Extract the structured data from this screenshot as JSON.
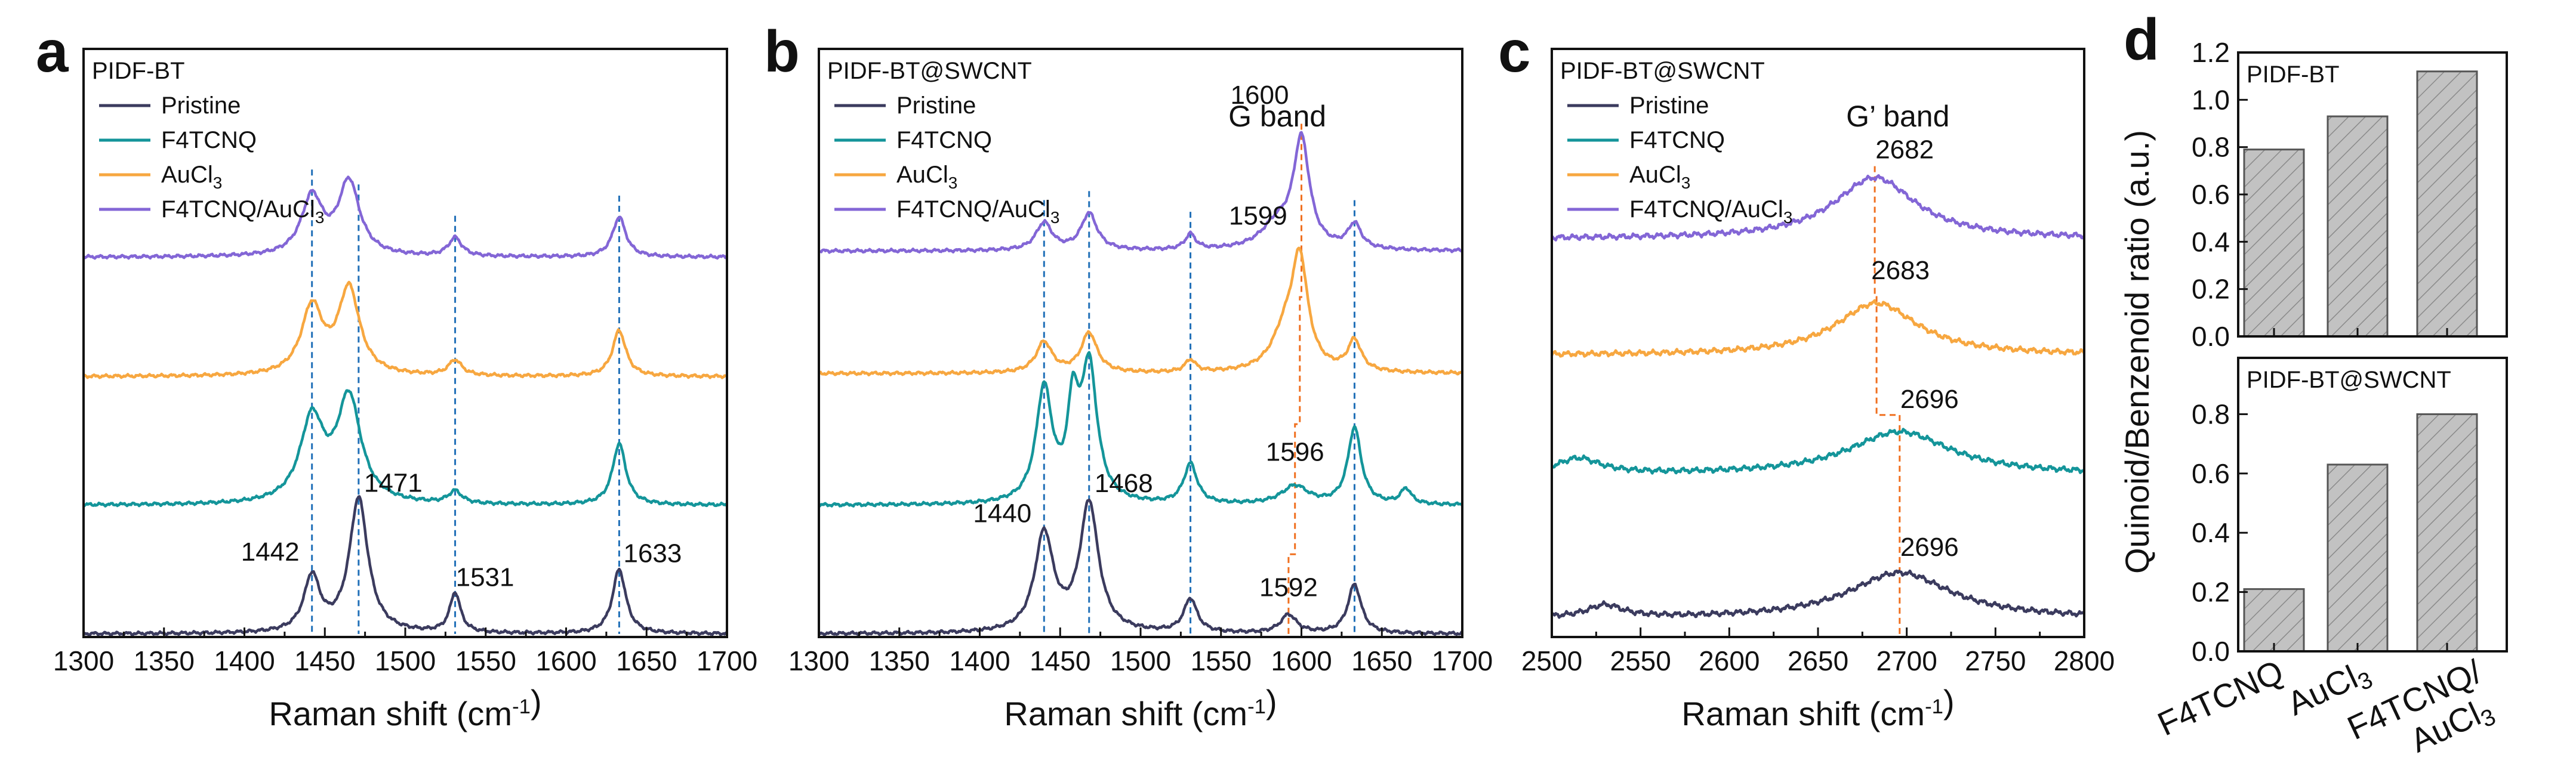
{
  "colors": {
    "pristine": "#3b3b5e",
    "f4tcnq": "#14959a",
    "aucl3": "#f7a740",
    "f4tcnq_aucl3": "#8366d6",
    "blue_dash": "#2170b8",
    "orange_dash": "#f07020",
    "bar_fill": "#c2c2c2"
  },
  "chart_data": [
    {
      "panel": "a",
      "type": "line",
      "title": "PIDF-BT",
      "xlabel": "Raman shift (cm-1)",
      "xlim": [
        1300,
        1700
      ],
      "xticks": [
        1300,
        1350,
        1400,
        1450,
        1500,
        1550,
        1600,
        1650,
        1700
      ],
      "legend": [
        "Pristine",
        "F4TCNQ",
        "AuCl3",
        "F4TCNQ/AuCl3"
      ],
      "legend_location": "top-left",
      "series": [
        {
          "name": "Pristine",
          "offset": 0,
          "baseline": 0.05,
          "peaks": [
            [
              1442,
              0.9,
              6
            ],
            [
              1471,
              2.2,
              7
            ],
            [
              1531,
              0.65,
              4
            ],
            [
              1633,
              1.05,
              5
            ]
          ]
        },
        {
          "name": "F4TCNQ",
          "offset": 2.1,
          "baseline": 0.05,
          "peaks": [
            [
              1442,
              1.35,
              9
            ],
            [
              1465,
              1.7,
              9
            ],
            [
              1531,
              0.2,
              5
            ],
            [
              1633,
              1.0,
              5
            ]
          ]
        },
        {
          "name": "AuCl3",
          "offset": 4.2,
          "baseline": 0.05,
          "peaks": [
            [
              1442,
              1.1,
              8
            ],
            [
              1465,
              1.4,
              8
            ],
            [
              1531,
              0.25,
              5
            ],
            [
              1633,
              0.75,
              5
            ]
          ]
        },
        {
          "name": "F4TCNQ/AuCl3",
          "offset": 6.15,
          "baseline": 0.05,
          "peaks": [
            [
              1442,
              0.95,
              8
            ],
            [
              1465,
              1.2,
              8
            ],
            [
              1531,
              0.3,
              5
            ],
            [
              1633,
              0.65,
              5
            ]
          ]
        }
      ],
      "peak_labels": [
        {
          "text": "1442",
          "x": 1442,
          "series": 0
        },
        {
          "text": "1471",
          "x": 1471,
          "series": 0
        },
        {
          "text": "1531",
          "x": 1531,
          "series": 0
        },
        {
          "text": "1633",
          "x": 1633,
          "series": 0
        }
      ],
      "guide_lines_x": [
        1442,
        1471,
        1531,
        1633
      ]
    },
    {
      "panel": "b",
      "type": "line",
      "title": "PIDF-BT@SWCNT",
      "xlabel": "Raman shift (cm-1)",
      "xlim": [
        1300,
        1700
      ],
      "xticks": [
        1300,
        1350,
        1400,
        1450,
        1500,
        1550,
        1600,
        1650,
        1700
      ],
      "legend": [
        "Pristine",
        "F4TCNQ",
        "AuCl3",
        "F4TCNQ/AuCl3"
      ],
      "legend_location": "top-left",
      "annotation": "G band",
      "series": [
        {
          "name": "Pristine",
          "offset": 0,
          "baseline": 0.05,
          "peaks": [
            [
              1440,
              1.6,
              7
            ],
            [
              1468,
              2.1,
              7
            ],
            [
              1531,
              0.55,
              5
            ],
            [
              1592,
              0.3,
              6
            ],
            [
              1633,
              0.8,
              5
            ]
          ]
        },
        {
          "name": "F4TCNQ",
          "offset": 2.1,
          "baseline": 0.05,
          "peaks": [
            [
              1440,
              1.85,
              6
            ],
            [
              1458,
              1.4,
              4
            ],
            [
              1468,
              2.2,
              6
            ],
            [
              1531,
              0.65,
              5
            ],
            [
              1596,
              0.3,
              10
            ],
            [
              1633,
              1.25,
              5
            ],
            [
              1665,
              0.25,
              4
            ]
          ]
        },
        {
          "name": "AuCl3",
          "offset": 4.25,
          "baseline": 0.05,
          "peaks": [
            [
              1440,
              0.5,
              6
            ],
            [
              1468,
              0.65,
              6
            ],
            [
              1531,
              0.2,
              4
            ],
            [
              1590,
              0.6,
              10
            ],
            [
              1599,
              1.7,
              6
            ],
            [
              1633,
              0.5,
              5
            ]
          ]
        },
        {
          "name": "F4TCNQ/AuCl3",
          "offset": 6.25,
          "baseline": 0.05,
          "peaks": [
            [
              1440,
              0.45,
              6
            ],
            [
              1468,
              0.6,
              6
            ],
            [
              1531,
              0.25,
              4
            ],
            [
              1585,
              0.4,
              12
            ],
            [
              1600,
              1.75,
              6
            ],
            [
              1633,
              0.4,
              5
            ]
          ]
        }
      ],
      "peak_labels": [
        {
          "text": "1440",
          "x": 1440,
          "series": 0
        },
        {
          "text": "1468",
          "x": 1468,
          "series": 0
        },
        {
          "text": "1592",
          "x": 1592,
          "series": 0
        },
        {
          "text": "1596",
          "x": 1596,
          "series": 1
        },
        {
          "text": "1599",
          "x": 1599,
          "series": 2
        },
        {
          "text": "1600",
          "x": 1600,
          "series": 3
        }
      ],
      "guide_lines_x": [
        1440,
        1468,
        1531,
        1633
      ],
      "step_guide_x": [
        1592,
        1596,
        1599,
        1600
      ]
    },
    {
      "panel": "c",
      "type": "line",
      "title": "PIDF-BT@SWCNT",
      "xlabel": "Raman shift (cm-1)",
      "xlim": [
        2500,
        2800
      ],
      "xticks": [
        2500,
        2550,
        2600,
        2650,
        2700,
        2750,
        2800
      ],
      "legend": [
        "Pristine",
        "F4TCNQ",
        "AuCl3",
        "F4TCNQ/AuCl3"
      ],
      "legend_location": "top-left",
      "annotation": "G’ band",
      "series": [
        {
          "name": "Pristine",
          "offset": 0,
          "baseline": 0.3,
          "peaks": [
            [
              2530,
              0.2,
              12
            ],
            [
              2696,
              0.75,
              35
            ]
          ]
        },
        {
          "name": "F4TCNQ",
          "offset": 2.35,
          "baseline": 0.3,
          "peaks": [
            [
              2515,
              0.25,
              15
            ],
            [
              2696,
              0.7,
              35
            ]
          ]
        },
        {
          "name": "AuCl3",
          "offset": 4.3,
          "baseline": 0.3,
          "peaks": [
            [
              2683,
              0.85,
              28
            ]
          ]
        },
        {
          "name": "F4TCNQ/AuCl3",
          "offset": 6.2,
          "baseline": 0.3,
          "peaks": [
            [
              2682,
              1.0,
              28
            ]
          ]
        }
      ],
      "peak_labels": [
        {
          "text": "2696",
          "x": 2696,
          "series": 0
        },
        {
          "text": "2696",
          "x": 2696,
          "series": 1
        },
        {
          "text": "2683",
          "x": 2683,
          "series": 2
        },
        {
          "text": "2682",
          "x": 2682,
          "series": 3
        }
      ],
      "step_guide_x": [
        2696,
        2696,
        2683,
        2682
      ]
    },
    {
      "panel": "d",
      "type": "bar",
      "ylabel": "Quinoid/Benzenoid ratio (a.u.)",
      "categories": [
        "F4TCNQ",
        "AuCl3",
        "F4TCNQ/AuCl3"
      ],
      "subplots": [
        {
          "title": "PIDF-BT",
          "values": [
            0.79,
            0.93,
            1.12
          ],
          "ylim": [
            0,
            1.2
          ],
          "yticks": [
            "0.0",
            "0.2",
            "0.4",
            "0.6",
            "0.8",
            "1.0",
            "1.2"
          ]
        },
        {
          "title": "PIDF-BT@SWCNT",
          "values": [
            0.21,
            0.63,
            0.8
          ],
          "ylim": [
            0,
            1.0
          ],
          "yticks": [
            "0.0",
            "0.2",
            "0.4",
            "0.6",
            "0.8"
          ]
        }
      ]
    }
  ]
}
